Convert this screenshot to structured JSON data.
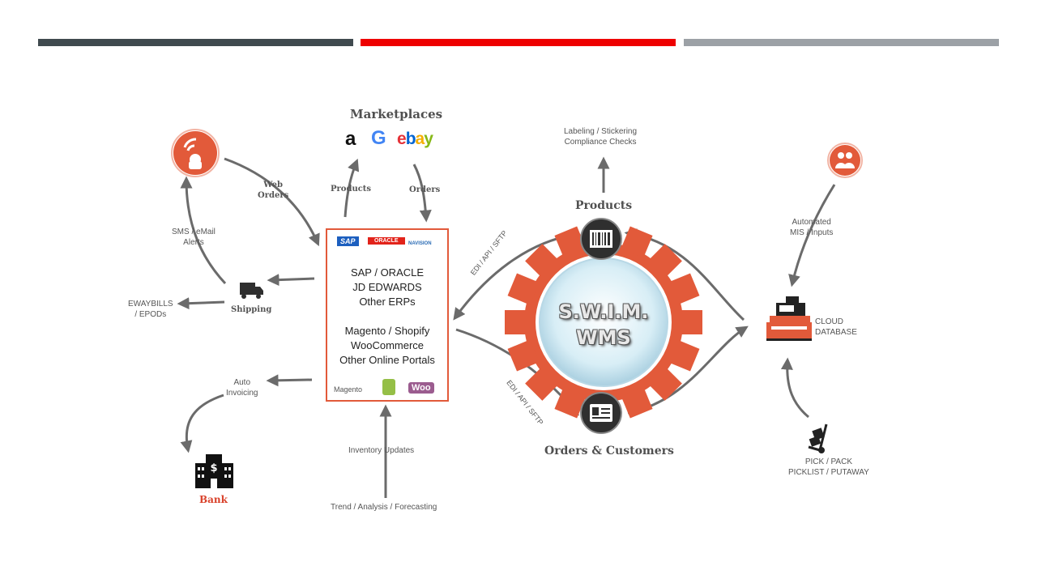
{
  "header_bars": {
    "colors": [
      "#404a4f",
      "#ee0000",
      "#9ca1a6"
    ]
  },
  "marketplaces": {
    "title": "Marketplaces",
    "logos": {
      "amazon": "a",
      "google": "G",
      "ebay_e": "e",
      "ebay_b": "b",
      "ebay_a": "a",
      "ebay_y": "y"
    }
  },
  "flows": {
    "web_orders": [
      "Web",
      "Orders"
    ],
    "products": "Products",
    "orders": "Orders",
    "sms_alerts": [
      "SMS / eMail",
      "Alerts"
    ],
    "shipping": "Shipping",
    "eway": [
      "EWAYBILLS",
      "/ EPODs"
    ],
    "auto_invoicing": [
      "Auto",
      "Invoicing"
    ],
    "bank": "Bank",
    "inventory_updates": "Inventory Updates",
    "trend": "Trend / Analysis / Forecasting",
    "edi_top": "EDI / API / SFTP",
    "edi_bottom": "EDI / API / SFTP"
  },
  "erp_box": {
    "logos": {
      "sap": "SAP",
      "oracle": "ORACLE",
      "navision": "NAVISION",
      "magento": "Magento",
      "woo": "Woo"
    },
    "erp_lines": [
      "SAP / ORACLE",
      "JD EDWARDS",
      "Other ERPs"
    ],
    "portal_lines": [
      "Magento / Shopify",
      "WooCommerce",
      "Other Online Portals"
    ]
  },
  "wms": {
    "line1": "S.W.I.M.",
    "line2": "WMS",
    "products": "Products",
    "orders_customers": "Orders & Customers",
    "labeling": [
      "Labeling / Stickering",
      "Compliance Checks"
    ]
  },
  "right": {
    "automated": [
      "Automated",
      "MIS / Inputs"
    ],
    "cloud": [
      "CLOUD",
      "DATABASE"
    ],
    "pick": [
      "PICK / PACK",
      "PICKLIST / PUTAWAY"
    ]
  },
  "colors": {
    "accent": "#e25a3a",
    "arrow": "#6b6b6b",
    "dark": "#2f2f2f"
  }
}
